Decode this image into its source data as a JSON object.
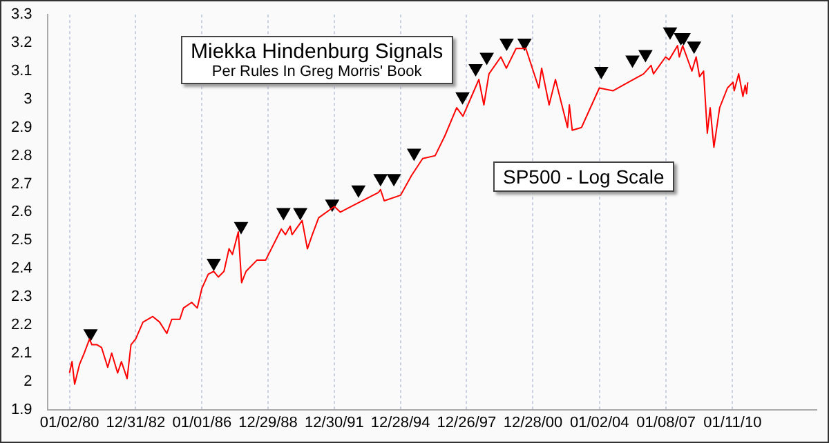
{
  "chart_data": {
    "type": "line",
    "title": "Miekka Hindenburg Signals",
    "subtitle": "Per Rules In Greg Morris' Book",
    "annotations": [
      "SP500 - Log Scale"
    ],
    "series": [
      {
        "color": "#ff0000",
        "marker": "none",
        "x": [
          "1980-01-02",
          "1980-02-13",
          "1980-03-27",
          "1980-06-15",
          "1980-09-01",
          "1980-11-28",
          "1981-01-06",
          "1981-04-01",
          "1981-06-15",
          "1981-09-25",
          "1981-11-30",
          "1982-03-08",
          "1982-05-10",
          "1982-08-12",
          "1982-10-15",
          "1982-12-31",
          "1983-05-01",
          "1983-10-10",
          "1984-02-01",
          "1984-05-30",
          "1984-08-20",
          "1984-12-31",
          "1985-03-01",
          "1985-07-15",
          "1985-10-15",
          "1985-12-31",
          "1986-04-15",
          "1986-07-15",
          "1986-09-29",
          "1986-12-31",
          "1987-03-25",
          "1987-05-20",
          "1987-08-25",
          "1987-10-19",
          "1987-12-31",
          "1988-06-30",
          "1988-11-20",
          "1989-08-05",
          "1989-10-13",
          "1989-12-31",
          "1990-01-30",
          "1990-07-16",
          "1990-10-11",
          "1990-12-31",
          "1991-04-15",
          "1991-12-31",
          "1992-04-08",
          "1993-12-31",
          "1994-02-01",
          "1994-04-04",
          "1994-12-31",
          "1995-06-30",
          "1995-12-31",
          "1996-07-24",
          "1996-12-31",
          "1997-07-15",
          "1997-10-27",
          "1998-07-17",
          "1998-10-08",
          "1998-12-31",
          "1999-07-16",
          "1999-10-15",
          "2000-03-24",
          "2000-09-01",
          "2001-04-04",
          "2001-05-21",
          "2001-09-21",
          "2002-01-04",
          "2002-07-23",
          "2002-08-22",
          "2002-10-09",
          "2003-03-11",
          "2003-12-31",
          "2004-08-12",
          "2005-04-20",
          "2005-12-31",
          "2006-05-05",
          "2006-06-13",
          "2006-12-31",
          "2007-02-27",
          "2007-07-16",
          "2007-08-15",
          "2007-10-09",
          "2008-03-10",
          "2008-05-19",
          "2008-07-15",
          "2008-09-19",
          "2008-11-20",
          "2009-01-06",
          "2009-03-09",
          "2009-06-12",
          "2009-10-19",
          "2010-01-19",
          "2010-02-08",
          "2010-04-23",
          "2010-07-02",
          "2010-08-09",
          "2010-08-31",
          "2010-09-20"
        ],
        "values": [
          2.03,
          2.07,
          1.99,
          2.06,
          2.1,
          2.15,
          2.13,
          2.13,
          2.12,
          2.05,
          2.1,
          2.03,
          2.07,
          2.01,
          2.13,
          2.15,
          2.21,
          2.23,
          2.21,
          2.17,
          2.22,
          2.22,
          2.26,
          2.28,
          2.26,
          2.33,
          2.38,
          2.39,
          2.37,
          2.39,
          2.47,
          2.45,
          2.53,
          2.35,
          2.39,
          2.43,
          2.43,
          2.54,
          2.52,
          2.55,
          2.52,
          2.57,
          2.47,
          2.52,
          2.58,
          2.62,
          2.6,
          2.67,
          2.68,
          2.64,
          2.66,
          2.73,
          2.79,
          2.8,
          2.87,
          2.97,
          2.94,
          3.07,
          2.98,
          3.09,
          3.15,
          3.11,
          3.18,
          3.18,
          3.04,
          3.11,
          2.98,
          3.07,
          2.9,
          2.98,
          2.89,
          2.9,
          3.04,
          3.03,
          3.06,
          3.09,
          3.12,
          3.09,
          3.15,
          3.14,
          3.19,
          3.15,
          3.19,
          3.1,
          3.15,
          3.08,
          3.1,
          2.88,
          2.97,
          2.83,
          2.97,
          3.04,
          3.06,
          3.03,
          3.09,
          3.01,
          3.05,
          3.02,
          3.06
        ]
      },
      {
        "type": "scatter",
        "color": "#000000",
        "marker": "triangle",
        "x": [
          "1980-12-15",
          "1986-07-15",
          "1987-10-10",
          "1989-09-10",
          "1990-06-15",
          "1991-11-25",
          "1993-02-01",
          "1994-02-01",
          "1994-09-10",
          "1995-08-10",
          "1997-10-20",
          "1998-05-25",
          "1998-11-25",
          "1999-10-20",
          "2000-08-10",
          "2004-02-01",
          "2005-07-01",
          "2006-02-01",
          "2007-03-15",
          "2007-09-10",
          "2007-10-25",
          "2008-04-15"
        ],
        "values": [
          2.17,
          2.42,
          2.55,
          2.6,
          2.6,
          2.63,
          2.68,
          2.72,
          2.72,
          2.81,
          3.01,
          3.11,
          3.15,
          3.2,
          3.2,
          3.1,
          3.14,
          3.16,
          3.24,
          3.22,
          3.22,
          3.19
        ]
      }
    ],
    "xlim": [
      "1979-01-01",
      "2013-11-01"
    ],
    "xticks": [
      {
        "value": "1980-01-02",
        "label": "01/02/80"
      },
      {
        "value": "1982-12-31",
        "label": "12/31/82"
      },
      {
        "value": "1986-01-01",
        "label": "01/01/86"
      },
      {
        "value": "1988-12-29",
        "label": "12/29/88"
      },
      {
        "value": "1991-12-30",
        "label": "12/30/91"
      },
      {
        "value": "1994-12-28",
        "label": "12/28/94"
      },
      {
        "value": "1997-12-26",
        "label": "12/26/97"
      },
      {
        "value": "2000-12-28",
        "label": "12/28/00"
      },
      {
        "value": "2004-01-02",
        "label": "01/02/04"
      },
      {
        "value": "2007-01-08",
        "label": "01/08/07"
      },
      {
        "value": "2010-01-11",
        "label": "01/11/10"
      }
    ],
    "ylim": [
      1.9,
      3.3
    ],
    "yticks": [
      1.9,
      2,
      2.1,
      2.2,
      2.3,
      2.4,
      2.5,
      2.6,
      2.7,
      2.8,
      2.9,
      3,
      3.1,
      3.2,
      3.3
    ],
    "grid": "x",
    "legend": false
  }
}
